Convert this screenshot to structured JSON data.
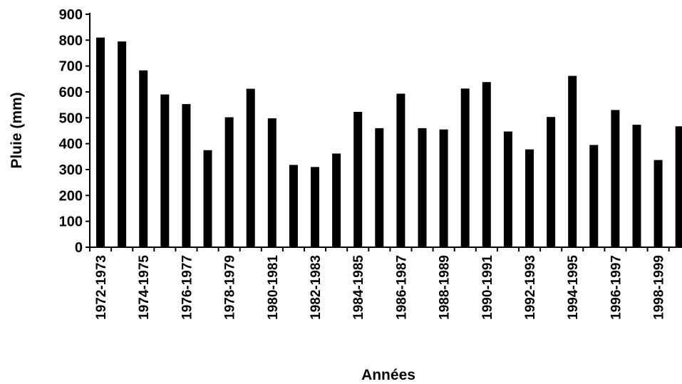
{
  "chart_data": {
    "type": "bar",
    "xlabel": "Années",
    "ylabel": "Pluie (mm)",
    "ylim": [
      0,
      900
    ],
    "yticks": [
      0,
      100,
      200,
      300,
      400,
      500,
      600,
      700,
      800,
      900
    ],
    "grid": false,
    "legend": "none",
    "bar_color": "#000000",
    "categories": [
      "1972-1973",
      "1973-1974",
      "1974-1975",
      "1975-1976",
      "1976-1977",
      "1977-1978",
      "1978-1979",
      "1979-1980",
      "1980-1981",
      "1981-1982",
      "1982-1983",
      "1983-1984",
      "1984-1985",
      "1985-1986",
      "1986-1987",
      "1987-1988",
      "1988-1989",
      "1989-1990",
      "1990-1991",
      "1991-1992",
      "1992-1993",
      "1993-1994",
      "1994-1995",
      "1995-1996",
      "1996-1997",
      "1997-1998",
      "1998-1999",
      "1999-2000"
    ],
    "shown_category_labels": [
      "1972-1973",
      "1974-1975",
      "1976-1977",
      "1978-1979",
      "1980-1981",
      "1982-1983",
      "1984-1985",
      "1986-1987",
      "1988-1989",
      "1990-1991",
      "1992-1993",
      "1994-1995",
      "1996-1997",
      "1998-1999"
    ],
    "values": [
      810,
      795,
      683,
      590,
      553,
      375,
      502,
      612,
      498,
      318,
      310,
      362,
      523,
      460,
      593,
      460,
      455,
      613,
      638,
      447,
      378,
      503,
      662,
      395,
      530,
      473,
      337,
      467
    ]
  }
}
